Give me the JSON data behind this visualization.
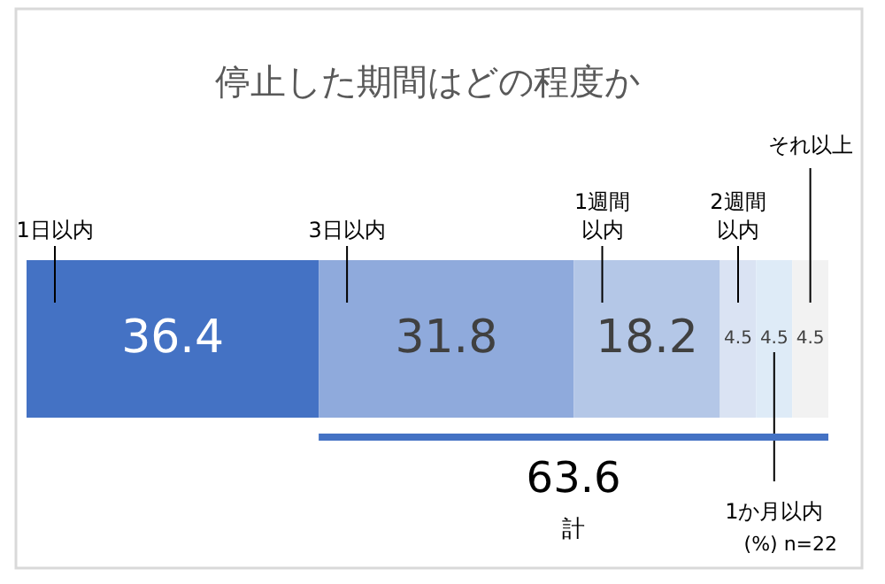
{
  "chart_data": {
    "type": "bar",
    "title": "停止した期間はどの程度か",
    "orientation": "horizontal",
    "stacked": true,
    "categories": [
      null
    ],
    "legend": false,
    "data_labels": true,
    "series": [
      {
        "name": "1日以内",
        "color": "#4472c4",
        "values": [
          36.4
        ]
      },
      {
        "name": "3日以内",
        "color": "#8faadc",
        "values": [
          31.8
        ]
      },
      {
        "name": "1週間以内",
        "color": "#b4c7e7",
        "values": [
          18.2
        ]
      },
      {
        "name": "2週間以内",
        "color": "#dae3f3",
        "values": [
          4.5
        ]
      },
      {
        "name": "1か月以内",
        "color": "#deebf7",
        "values": [
          4.5
        ]
      },
      {
        "name": "それ以上",
        "color": "#f2f2f2",
        "values": [
          4.5
        ]
      }
    ],
    "annotations": [
      "63.6",
      "計",
      "(%) n=22"
    ]
  }
}
